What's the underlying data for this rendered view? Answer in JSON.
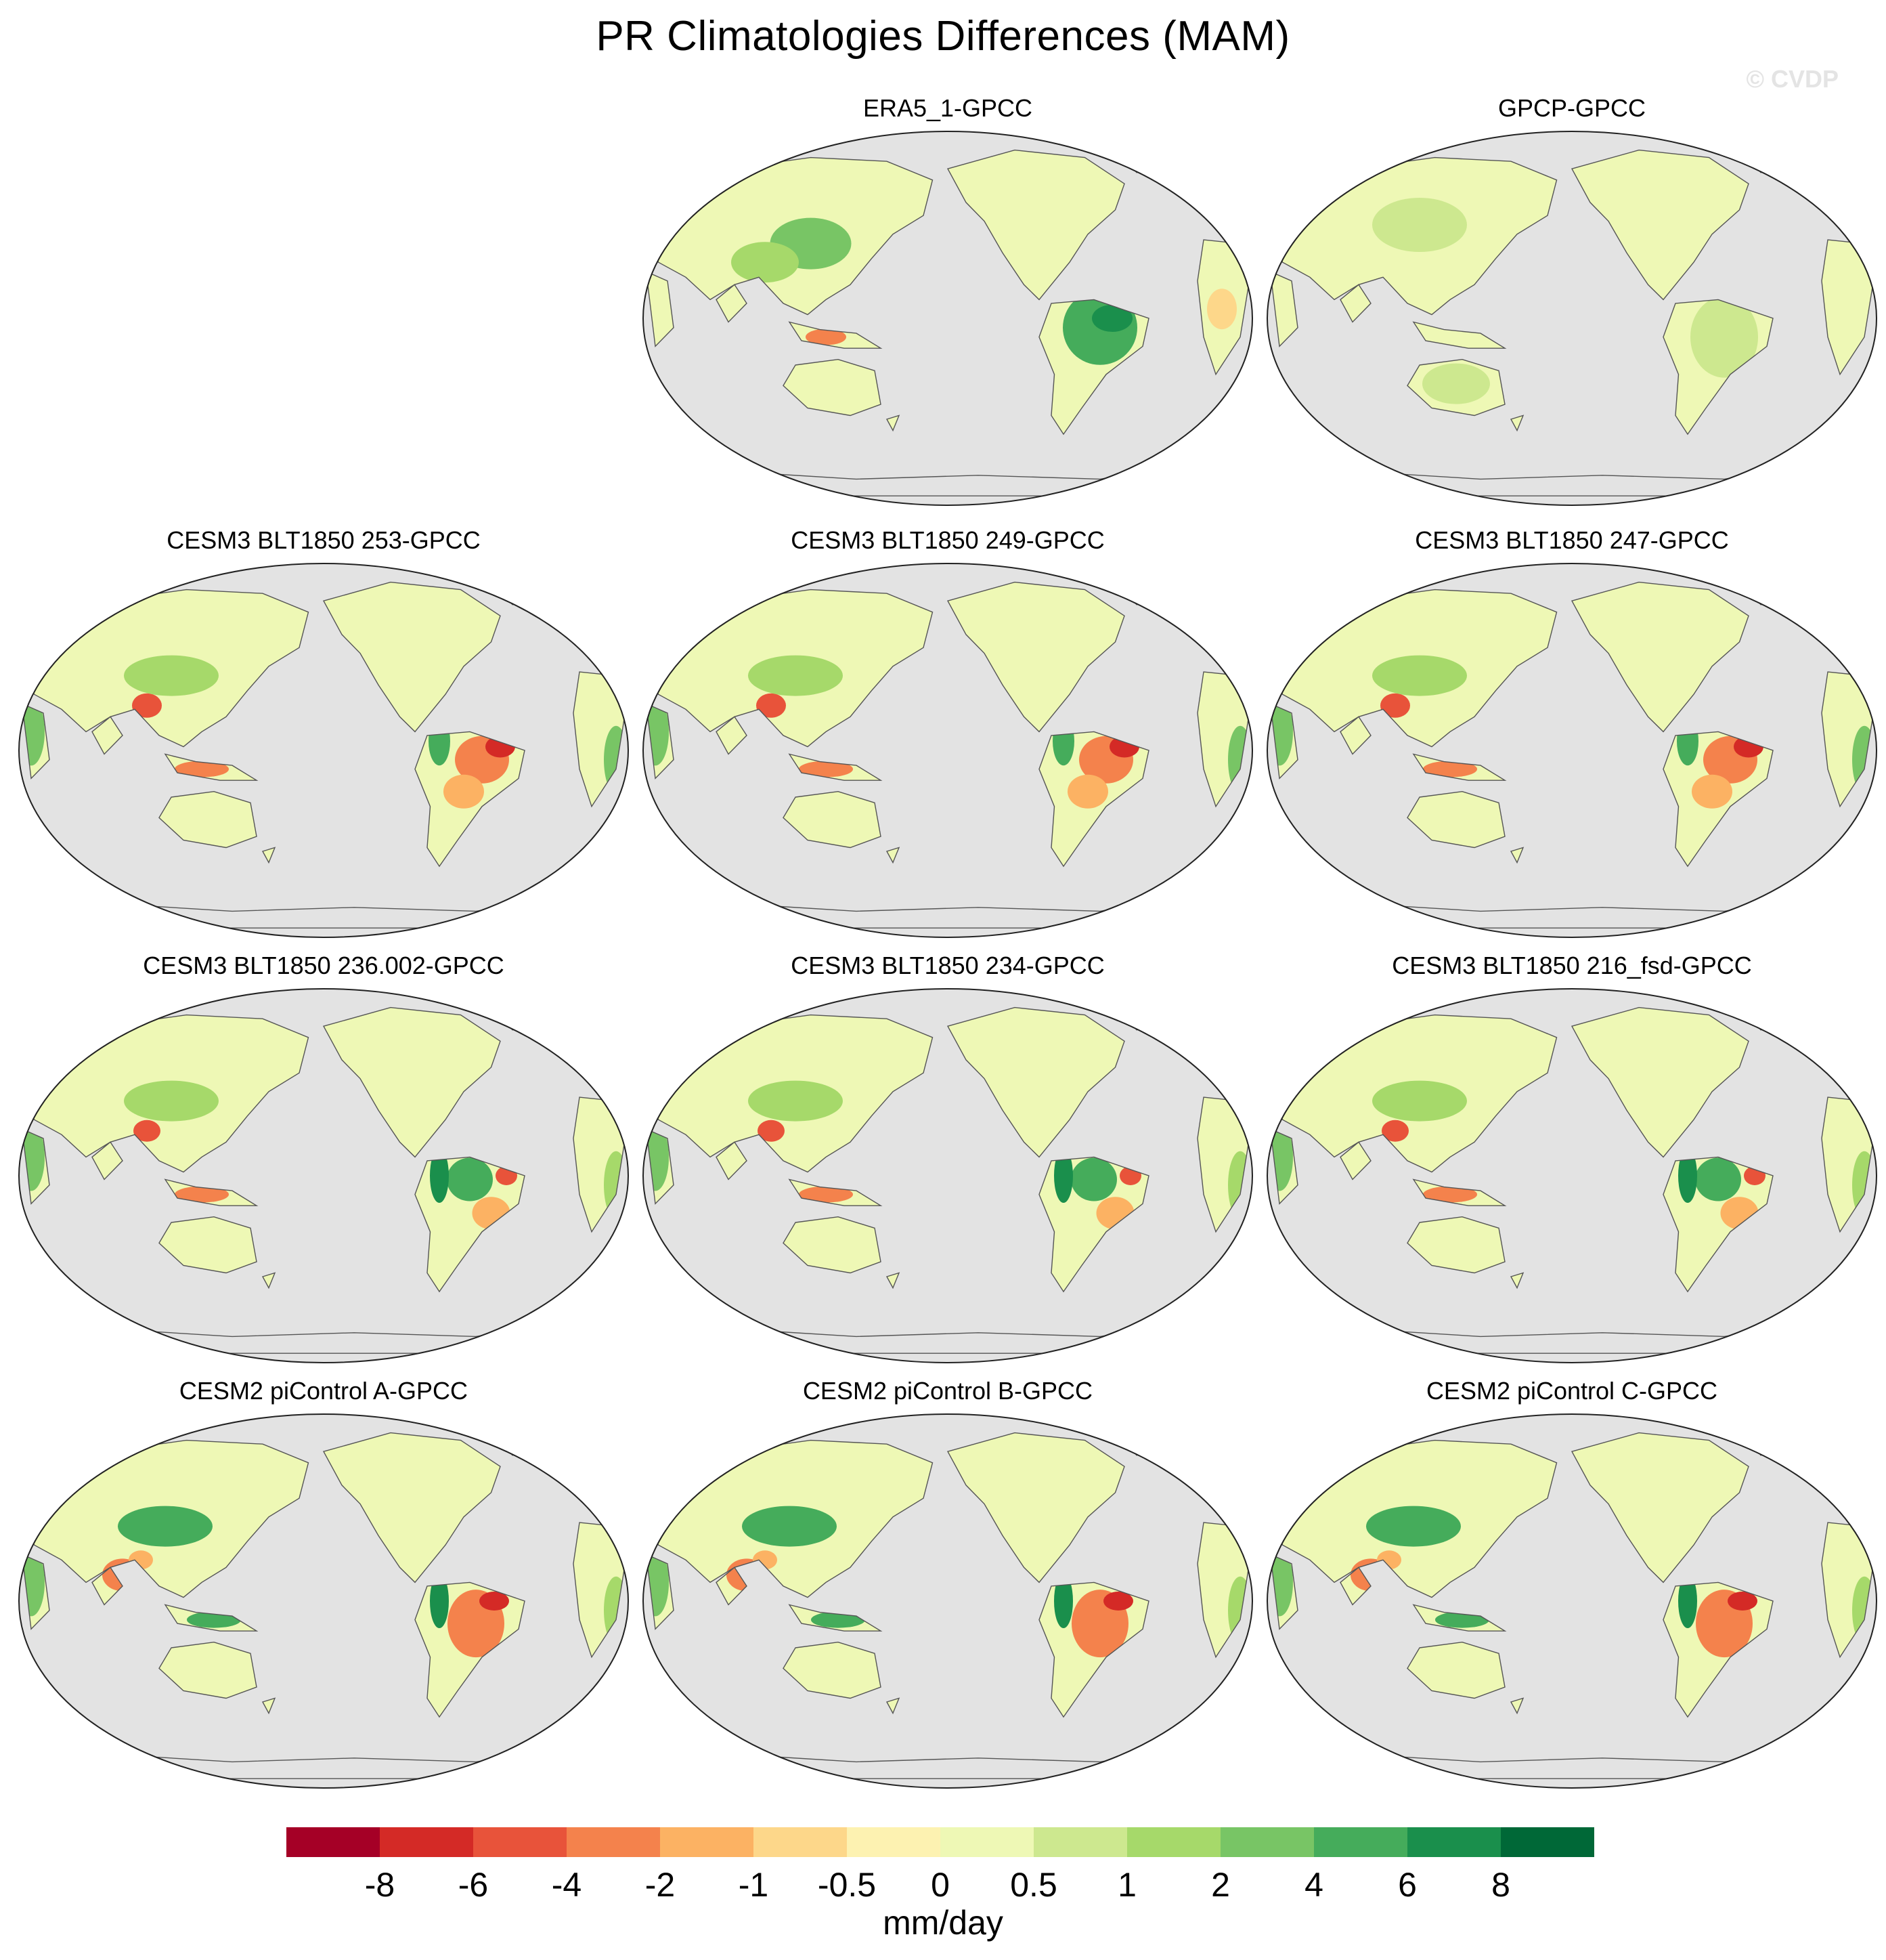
{
  "title": "PR Climatologies Differences (MAM)",
  "watermark": "© CVDP",
  "panels": [
    {
      "id": "era5",
      "title": "ERA5_1-GPCC",
      "bias": "obs_mixed"
    },
    {
      "id": "gpcp",
      "title": "GPCP-GPCC",
      "bias": "obs_weak"
    },
    {
      "id": "m253",
      "title": "CESM3 BLT1850 253-GPCC",
      "bias": "model_dry_amazon"
    },
    {
      "id": "m249",
      "title": "CESM3 BLT1850 249-GPCC",
      "bias": "model_dry_amazon"
    },
    {
      "id": "m247",
      "title": "CESM3 BLT1850 247-GPCC",
      "bias": "model_dry_amazon"
    },
    {
      "id": "m236",
      "title": "CESM3 BLT1850 236.002-GPCC",
      "bias": "model_wet_amazon"
    },
    {
      "id": "m234",
      "title": "CESM3 BLT1850 234-GPCC",
      "bias": "model_wet_amazon"
    },
    {
      "id": "m216",
      "title": "CESM3 BLT1850 216_fsd-GPCC",
      "bias": "model_wet_amazon"
    },
    {
      "id": "pia",
      "title": "CESM2 piControl A-GPCC",
      "bias": "model_dry_india"
    },
    {
      "id": "pib",
      "title": "CESM2 piControl B-GPCC",
      "bias": "model_dry_india"
    },
    {
      "id": "pic",
      "title": "CESM2 piControl C-GPCC",
      "bias": "model_dry_india"
    }
  ],
  "colorbar": {
    "units": "mm/day",
    "labels": [
      "-8",
      "-6",
      "-4",
      "-2",
      "-1",
      "-0.5",
      "0",
      "0.5",
      "1",
      "2",
      "4",
      "6",
      "8"
    ],
    "colors": [
      "#a50026",
      "#d42a26",
      "#e8533a",
      "#f4824c",
      "#fcb263",
      "#fdd78a",
      "#fdf2b1",
      "#eef8b5",
      "#cde88f",
      "#a6d96a",
      "#78c565",
      "#45ac5b",
      "#1a8f4c",
      "#006837"
    ]
  },
  "colors": {
    "ocean": "#e3e3e3",
    "coast": "#555555"
  }
}
